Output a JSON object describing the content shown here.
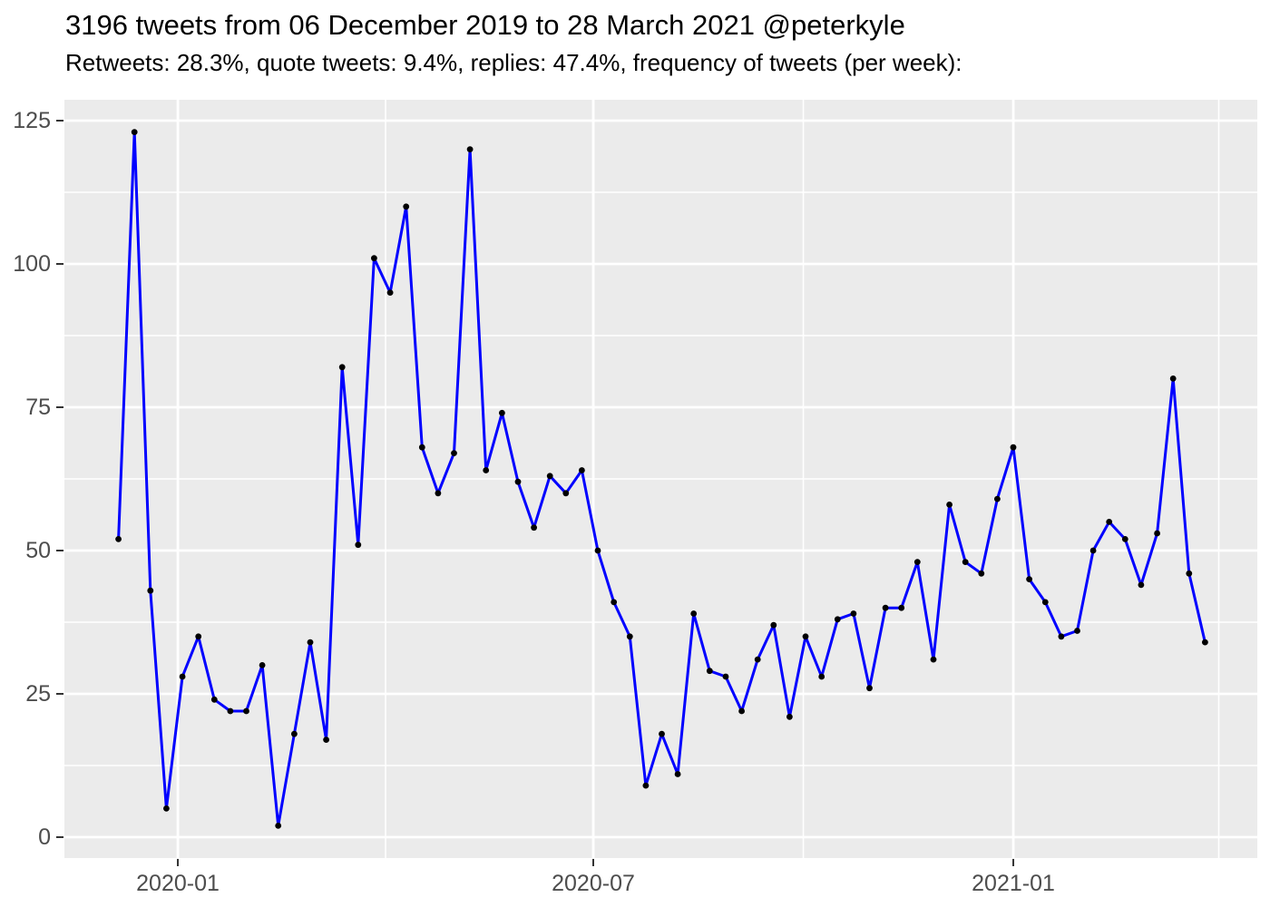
{
  "chart_data": {
    "type": "line",
    "title": "3196 tweets from 06 December 2019 to 28 March 2021 @peterkyle",
    "subtitle": "Retweets: 28.3%, quote tweets: 9.4%, replies: 47.4%, frequency of tweets (per week):",
    "series_name": "tweets-per-week",
    "total_tweets": 3196,
    "x": [
      "2019-12-06",
      "2019-12-13",
      "2019-12-20",
      "2019-12-27",
      "2020-01-03",
      "2020-01-10",
      "2020-01-17",
      "2020-01-24",
      "2020-01-31",
      "2020-02-07",
      "2020-02-14",
      "2020-02-21",
      "2020-02-28",
      "2020-03-06",
      "2020-03-13",
      "2020-03-20",
      "2020-03-27",
      "2020-04-03",
      "2020-04-10",
      "2020-04-17",
      "2020-04-24",
      "2020-05-01",
      "2020-05-08",
      "2020-05-15",
      "2020-05-22",
      "2020-05-29",
      "2020-06-05",
      "2020-06-12",
      "2020-06-19",
      "2020-06-26",
      "2020-07-03",
      "2020-07-10",
      "2020-07-17",
      "2020-07-24",
      "2020-07-31",
      "2020-08-07",
      "2020-08-14",
      "2020-08-21",
      "2020-08-28",
      "2020-09-04",
      "2020-09-11",
      "2020-09-18",
      "2020-09-25",
      "2020-10-02",
      "2020-10-09",
      "2020-10-16",
      "2020-10-23",
      "2020-10-30",
      "2020-11-06",
      "2020-11-13",
      "2020-11-20",
      "2020-11-27",
      "2020-12-04",
      "2020-12-11",
      "2020-12-18",
      "2020-12-25",
      "2021-01-01",
      "2021-01-08",
      "2021-01-15",
      "2021-01-22",
      "2021-01-29",
      "2021-02-05",
      "2021-02-12",
      "2021-02-19",
      "2021-02-26",
      "2021-03-05",
      "2021-03-12",
      "2021-03-19",
      "2021-03-26"
    ],
    "values": [
      52,
      123,
      43,
      5,
      28,
      35,
      24,
      22,
      22,
      30,
      2,
      18,
      34,
      17,
      82,
      51,
      101,
      95,
      110,
      68,
      60,
      67,
      120,
      64,
      74,
      62,
      54,
      63,
      60,
      64,
      50,
      41,
      35,
      9,
      18,
      11,
      39,
      29,
      28,
      22,
      31,
      37,
      21,
      35,
      28,
      38,
      39,
      26,
      40,
      40,
      48,
      31,
      58,
      48,
      46,
      59,
      68,
      45,
      41,
      35,
      36,
      50,
      55,
      52,
      44,
      53,
      80,
      46,
      34
    ],
    "xlabel": "",
    "ylabel": "",
    "ylim": [
      0,
      125
    ],
    "y_ticks": [
      0,
      25,
      50,
      75,
      100,
      125
    ],
    "y_minor_ticks": [
      12.5,
      37.5,
      62.5,
      87.5,
      112.5
    ],
    "x_ticks": [
      {
        "label": "2020-01",
        "date": "2020-01-01"
      },
      {
        "label": "2020-07",
        "date": "2020-07-01"
      },
      {
        "label": "2021-01",
        "date": "2021-01-01"
      }
    ],
    "x_minor_dates": [
      "2020-04-01",
      "2020-10-01",
      "2021-04-01"
    ],
    "grid": "major-and-minor",
    "legend": "none",
    "colors": {
      "line": "#0000FF",
      "point": "#000000",
      "panel_bg": "#EBEBEB",
      "grid": "#FFFFFF",
      "axis_text": "#4D4D4D",
      "tick_mark": "#333333",
      "title_text": "#000000",
      "figure_bg": "#FFFFFF"
    }
  }
}
